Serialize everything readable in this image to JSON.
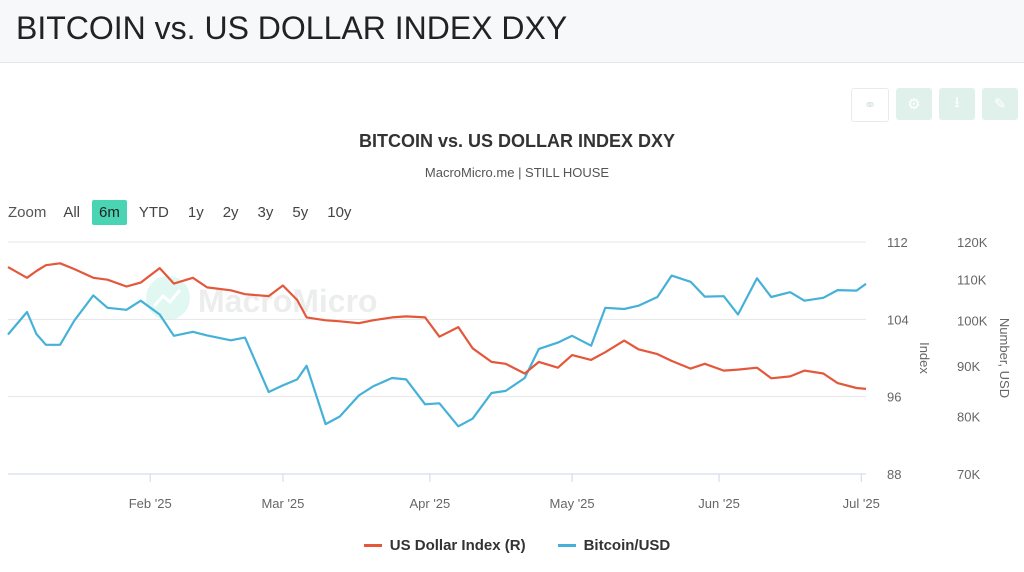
{
  "page": {
    "title": "BITCOIN vs. US DOLLAR INDEX DXY"
  },
  "toolbar": {
    "share_icon": "share-icon",
    "settings_icon": "gear-icon",
    "download_icon": "download-icon",
    "edit_icon": "pencil-icon"
  },
  "zoom": {
    "label": "Zoom",
    "options": [
      "All",
      "6m",
      "YTD",
      "1y",
      "2y",
      "3y",
      "5y",
      "10y"
    ],
    "selected": "6m"
  },
  "watermark": "MacroMicro",
  "colors": {
    "dxy": "#e4573b",
    "btc": "#45b1d9",
    "accent": "#49d5b4"
  },
  "chart_data": {
    "type": "line",
    "title": "BITCOIN vs. US DOLLAR INDEX DXY",
    "subtitle": "MacroMicro.me | STILL HOUSE",
    "x_start": "2025-01-02",
    "x_end": "2025-07-02",
    "x_ticks": [
      {
        "date": "2025-02-01",
        "label": "Feb '25"
      },
      {
        "date": "2025-03-01",
        "label": "Mar '25"
      },
      {
        "date": "2025-04-01",
        "label": "Apr '25"
      },
      {
        "date": "2025-05-01",
        "label": "May '25"
      },
      {
        "date": "2025-06-01",
        "label": "Jun '25"
      },
      {
        "date": "2025-07-01",
        "label": "Jul '25"
      }
    ],
    "right_axis_inner": {
      "label": "Index",
      "min": 88,
      "max": 112,
      "ticks": [
        88,
        96,
        104,
        112
      ]
    },
    "right_axis_outer": {
      "label": "Number, USD",
      "scale": "log",
      "min": 70000,
      "max": 120000,
      "ticks": [
        {
          "value": 70000,
          "label": "70K"
        },
        {
          "value": 80000,
          "label": "80K"
        },
        {
          "value": 90000,
          "label": "90K"
        },
        {
          "value": 100000,
          "label": "100K"
        },
        {
          "value": 110000,
          "label": "110K"
        },
        {
          "value": 120000,
          "label": "120K"
        }
      ]
    },
    "grid": true,
    "legend_position": "bottom",
    "series": [
      {
        "name": "US Dollar Index (R)",
        "axis": "Index",
        "points": [
          [
            "2025-01-02",
            109.4
          ],
          [
            "2025-01-06",
            108.3
          ],
          [
            "2025-01-08",
            109.0
          ],
          [
            "2025-01-10",
            109.6
          ],
          [
            "2025-01-13",
            109.8
          ],
          [
            "2025-01-16",
            109.2
          ],
          [
            "2025-01-20",
            108.3
          ],
          [
            "2025-01-23",
            108.1
          ],
          [
            "2025-01-27",
            107.4
          ],
          [
            "2025-01-30",
            107.8
          ],
          [
            "2025-02-03",
            109.3
          ],
          [
            "2025-02-06",
            107.7
          ],
          [
            "2025-02-10",
            108.3
          ],
          [
            "2025-02-13",
            107.3
          ],
          [
            "2025-02-18",
            107.0
          ],
          [
            "2025-02-21",
            106.6
          ],
          [
            "2025-02-26",
            106.4
          ],
          [
            "2025-03-01",
            107.5
          ],
          [
            "2025-03-04",
            106.0
          ],
          [
            "2025-03-06",
            104.2
          ],
          [
            "2025-03-10",
            103.9
          ],
          [
            "2025-03-13",
            103.8
          ],
          [
            "2025-03-17",
            103.6
          ],
          [
            "2025-03-20",
            103.9
          ],
          [
            "2025-03-24",
            104.2
          ],
          [
            "2025-03-27",
            104.3
          ],
          [
            "2025-03-31",
            104.2
          ],
          [
            "2025-04-03",
            102.2
          ],
          [
            "2025-04-07",
            103.2
          ],
          [
            "2025-04-10",
            101.0
          ],
          [
            "2025-04-14",
            99.6
          ],
          [
            "2025-04-17",
            99.4
          ],
          [
            "2025-04-21",
            98.4
          ],
          [
            "2025-04-24",
            99.6
          ],
          [
            "2025-04-28",
            99.0
          ],
          [
            "2025-05-01",
            100.3
          ],
          [
            "2025-05-05",
            99.8
          ],
          [
            "2025-05-08",
            100.6
          ],
          [
            "2025-05-12",
            101.8
          ],
          [
            "2025-05-15",
            100.9
          ],
          [
            "2025-05-19",
            100.4
          ],
          [
            "2025-05-22",
            99.7
          ],
          [
            "2025-05-26",
            98.9
          ],
          [
            "2025-05-29",
            99.4
          ],
          [
            "2025-06-02",
            98.7
          ],
          [
            "2025-06-05",
            98.8
          ],
          [
            "2025-06-09",
            99.0
          ],
          [
            "2025-06-12",
            97.9
          ],
          [
            "2025-06-16",
            98.1
          ],
          [
            "2025-06-19",
            98.7
          ],
          [
            "2025-06-23",
            98.4
          ],
          [
            "2025-06-26",
            97.4
          ],
          [
            "2025-06-30",
            96.9
          ],
          [
            "2025-07-02",
            96.8
          ]
        ]
      },
      {
        "name": "Bitcoin/USD",
        "axis": "Number, USD",
        "points": [
          [
            "2025-01-02",
            96800
          ],
          [
            "2025-01-06",
            102000
          ],
          [
            "2025-01-08",
            96900
          ],
          [
            "2025-01-10",
            94500
          ],
          [
            "2025-01-13",
            94500
          ],
          [
            "2025-01-16",
            100000
          ],
          [
            "2025-01-20",
            106000
          ],
          [
            "2025-01-23",
            103000
          ],
          [
            "2025-01-27",
            102500
          ],
          [
            "2025-01-30",
            104700
          ],
          [
            "2025-02-03",
            101400
          ],
          [
            "2025-02-06",
            96500
          ],
          [
            "2025-02-10",
            97400
          ],
          [
            "2025-02-13",
            96600
          ],
          [
            "2025-02-18",
            95500
          ],
          [
            "2025-02-21",
            96100
          ],
          [
            "2025-02-26",
            84700
          ],
          [
            "2025-03-01",
            86000
          ],
          [
            "2025-03-04",
            87200
          ],
          [
            "2025-03-06",
            90000
          ],
          [
            "2025-03-10",
            78600
          ],
          [
            "2025-03-13",
            80000
          ],
          [
            "2025-03-17",
            84000
          ],
          [
            "2025-03-20",
            85800
          ],
          [
            "2025-03-24",
            87500
          ],
          [
            "2025-03-27",
            87200
          ],
          [
            "2025-03-31",
            82300
          ],
          [
            "2025-04-03",
            82500
          ],
          [
            "2025-04-07",
            78200
          ],
          [
            "2025-04-10",
            79600
          ],
          [
            "2025-04-14",
            84500
          ],
          [
            "2025-04-17",
            84900
          ],
          [
            "2025-04-21",
            87500
          ],
          [
            "2025-04-24",
            93600
          ],
          [
            "2025-04-28",
            95000
          ],
          [
            "2025-05-01",
            96500
          ],
          [
            "2025-05-05",
            94300
          ],
          [
            "2025-05-08",
            103000
          ],
          [
            "2025-05-12",
            102700
          ],
          [
            "2025-05-15",
            103500
          ],
          [
            "2025-05-19",
            105600
          ],
          [
            "2025-05-22",
            111000
          ],
          [
            "2025-05-26",
            109400
          ],
          [
            "2025-05-29",
            105700
          ],
          [
            "2025-06-02",
            105800
          ],
          [
            "2025-06-05",
            101400
          ],
          [
            "2025-06-09",
            110300
          ],
          [
            "2025-06-12",
            105600
          ],
          [
            "2025-06-16",
            106800
          ],
          [
            "2025-06-19",
            104700
          ],
          [
            "2025-06-23",
            105400
          ],
          [
            "2025-06-26",
            107300
          ],
          [
            "2025-06-30",
            107200
          ],
          [
            "2025-07-02",
            108900
          ]
        ]
      }
    ]
  }
}
